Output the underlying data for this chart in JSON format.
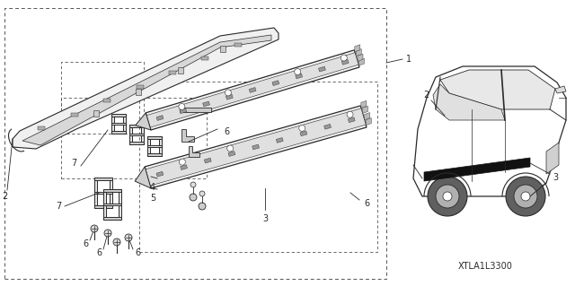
{
  "part_code": "XTLA1L3300",
  "bg": "#ffffff",
  "lc": "#2a2a2a",
  "dc": "#555555",
  "fig_w": 6.4,
  "fig_h": 3.19,
  "dpi": 100,
  "font_sz": 7,
  "partcode_sz": 7
}
